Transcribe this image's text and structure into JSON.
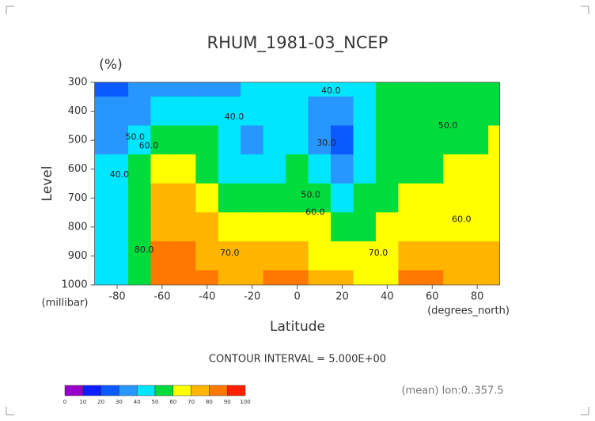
{
  "chart_data": {
    "type": "contour",
    "title": "RHUM_1981-03_NCEP",
    "units": "(%)",
    "y_label": "Level",
    "y_units": "(millibar)",
    "x_label": "Latitude",
    "x_units": "(degrees_north)",
    "footer": "CONTOUR INTERVAL = 5.000E+00",
    "note": "(mean) lon:0..357.5",
    "x": [
      -90,
      -80,
      -70,
      -60,
      -50,
      -40,
      -30,
      -20,
      -10,
      0,
      10,
      20,
      30,
      40,
      50,
      60,
      70,
      80,
      90
    ],
    "y": [
      300,
      400,
      500,
      600,
      700,
      800,
      900,
      1000
    ],
    "z": [
      [
        20,
        25,
        30,
        30,
        35,
        35,
        35,
        40,
        45,
        45,
        40,
        45,
        45,
        50,
        55,
        55,
        50,
        50,
        50
      ],
      [
        30,
        30,
        35,
        40,
        45,
        45,
        40,
        40,
        45,
        45,
        35,
        30,
        40,
        50,
        55,
        55,
        55,
        55,
        55
      ],
      [
        35,
        35,
        45,
        55,
        55,
        50,
        40,
        35,
        45,
        45,
        35,
        25,
        40,
        50,
        55,
        55,
        55,
        55,
        60
      ],
      [
        40,
        40,
        50,
        65,
        65,
        55,
        45,
        40,
        45,
        50,
        40,
        30,
        45,
        50,
        55,
        55,
        60,
        60,
        60
      ],
      [
        45,
        45,
        50,
        70,
        70,
        65,
        55,
        50,
        50,
        55,
        50,
        45,
        50,
        55,
        60,
        60,
        60,
        60,
        65
      ],
      [
        45,
        45,
        50,
        75,
        75,
        70,
        65,
        60,
        60,
        60,
        60,
        55,
        55,
        60,
        60,
        65,
        65,
        65,
        65
      ],
      [
        45,
        45,
        55,
        80,
        80,
        75,
        70,
        70,
        70,
        70,
        65,
        60,
        60,
        60,
        70,
        70,
        70,
        70,
        70
      ],
      [
        45,
        45,
        55,
        85,
        85,
        80,
        75,
        75,
        80,
        80,
        75,
        70,
        65,
        65,
        80,
        80,
        75,
        70,
        70
      ]
    ],
    "xlim": [
      -90,
      90
    ],
    "ylim": [
      1000,
      300
    ],
    "xticks": [
      -80,
      -60,
      -40,
      -20,
      0,
      20,
      40,
      60,
      80
    ],
    "yticks": [
      300,
      400,
      500,
      600,
      700,
      800,
      900,
      1000
    ],
    "annotations": [
      {
        "text": "40.0",
        "x": -28,
        "y": 420
      },
      {
        "text": "40.0",
        "x": 15,
        "y": 330
      },
      {
        "text": "30.0",
        "x": 13,
        "y": 510
      },
      {
        "text": "50.0",
        "x": -72,
        "y": 490
      },
      {
        "text": "60.0",
        "x": -66,
        "y": 520
      },
      {
        "text": "40.0",
        "x": -79,
        "y": 620
      },
      {
        "text": "50.0",
        "x": 67,
        "y": 450
      },
      {
        "text": "50.0",
        "x": 6,
        "y": 690
      },
      {
        "text": "60.0",
        "x": 8,
        "y": 750
      },
      {
        "text": "60.0",
        "x": 73,
        "y": 775
      },
      {
        "text": "70.0",
        "x": -30,
        "y": 890
      },
      {
        "text": "80.0",
        "x": -68,
        "y": 880
      },
      {
        "text": "70.0",
        "x": 36,
        "y": 890
      }
    ],
    "colorbar": {
      "levels": [
        0,
        10,
        20,
        30,
        40,
        50,
        60,
        70,
        80,
        90,
        100
      ],
      "colors": [
        "#9600c8",
        "#0a1eff",
        "#0a5aff",
        "#2896ff",
        "#00e6ff",
        "#00dc3c",
        "#ffff00",
        "#ffb400",
        "#ff7800",
        "#ff1e00"
      ]
    }
  }
}
